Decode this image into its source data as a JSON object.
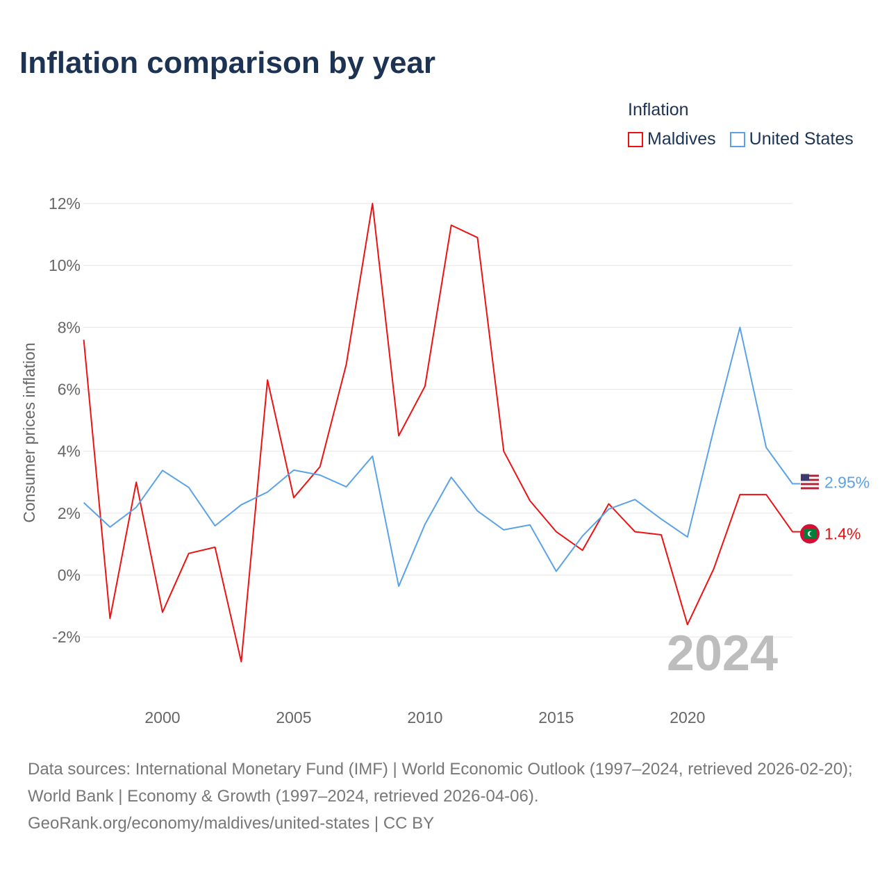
{
  "title": "Inflation comparison by year",
  "legend": {
    "title": "Inflation",
    "items": [
      {
        "name": "Maldives",
        "color": "#ee1111"
      },
      {
        "name": "United States",
        "color": "#5aa2e8"
      }
    ]
  },
  "chart_data": {
    "type": "line",
    "title": "Inflation comparison by year",
    "ylabel": "Consumer prices inflation",
    "xlabel": "",
    "x": [
      1997,
      1998,
      1999,
      2000,
      2001,
      2002,
      2003,
      2004,
      2005,
      2006,
      2007,
      2008,
      2009,
      2010,
      2011,
      2012,
      2013,
      2014,
      2015,
      2016,
      2017,
      2018,
      2019,
      2020,
      2021,
      2022,
      2023,
      2024
    ],
    "xlim": [
      1997,
      2024
    ],
    "ylim": [
      -3.5,
      13
    ],
    "x_ticks": [
      2000,
      2005,
      2010,
      2015,
      2020
    ],
    "y_ticks": [
      -2,
      0,
      2,
      4,
      6,
      8,
      10,
      12
    ],
    "y_tick_labels": [
      "-2%",
      "0%",
      "2%",
      "4%",
      "6%",
      "8%",
      "10%",
      "12%"
    ],
    "grid": true,
    "legend_position": "top-right",
    "series": [
      {
        "name": "Maldives",
        "color": "#ee1111",
        "end_label": "1.4%",
        "values": [
          7.6,
          -1.4,
          3.0,
          -1.2,
          0.7,
          0.9,
          -2.8,
          6.3,
          2.5,
          3.5,
          6.8,
          12.0,
          4.5,
          6.1,
          11.3,
          10.9,
          4.0,
          2.4,
          1.4,
          0.8,
          2.3,
          1.4,
          1.3,
          -1.6,
          0.2,
          2.6,
          2.6,
          1.4
        ]
      },
      {
        "name": "United States",
        "color": "#5aa2e8",
        "end_label": "2.95%",
        "values": [
          2.34,
          1.55,
          2.19,
          3.38,
          2.83,
          1.59,
          2.27,
          2.68,
          3.39,
          3.23,
          2.85,
          3.84,
          -0.36,
          1.64,
          3.16,
          2.07,
          1.46,
          1.62,
          0.12,
          1.26,
          2.13,
          2.44,
          1.81,
          1.23,
          4.7,
          8.0,
          4.12,
          2.95
        ]
      }
    ],
    "annotation": "2024"
  },
  "footer": {
    "sources": "Data sources: International Monetary Fund (IMF) | World Economic Outlook (1997–2024, retrieved 2026-02-20); World Bank | Economy & Growth (1997–2024, retrieved 2026-04-06).",
    "link": "GeoRank.org/economy/maldives/united-states | CC BY"
  }
}
